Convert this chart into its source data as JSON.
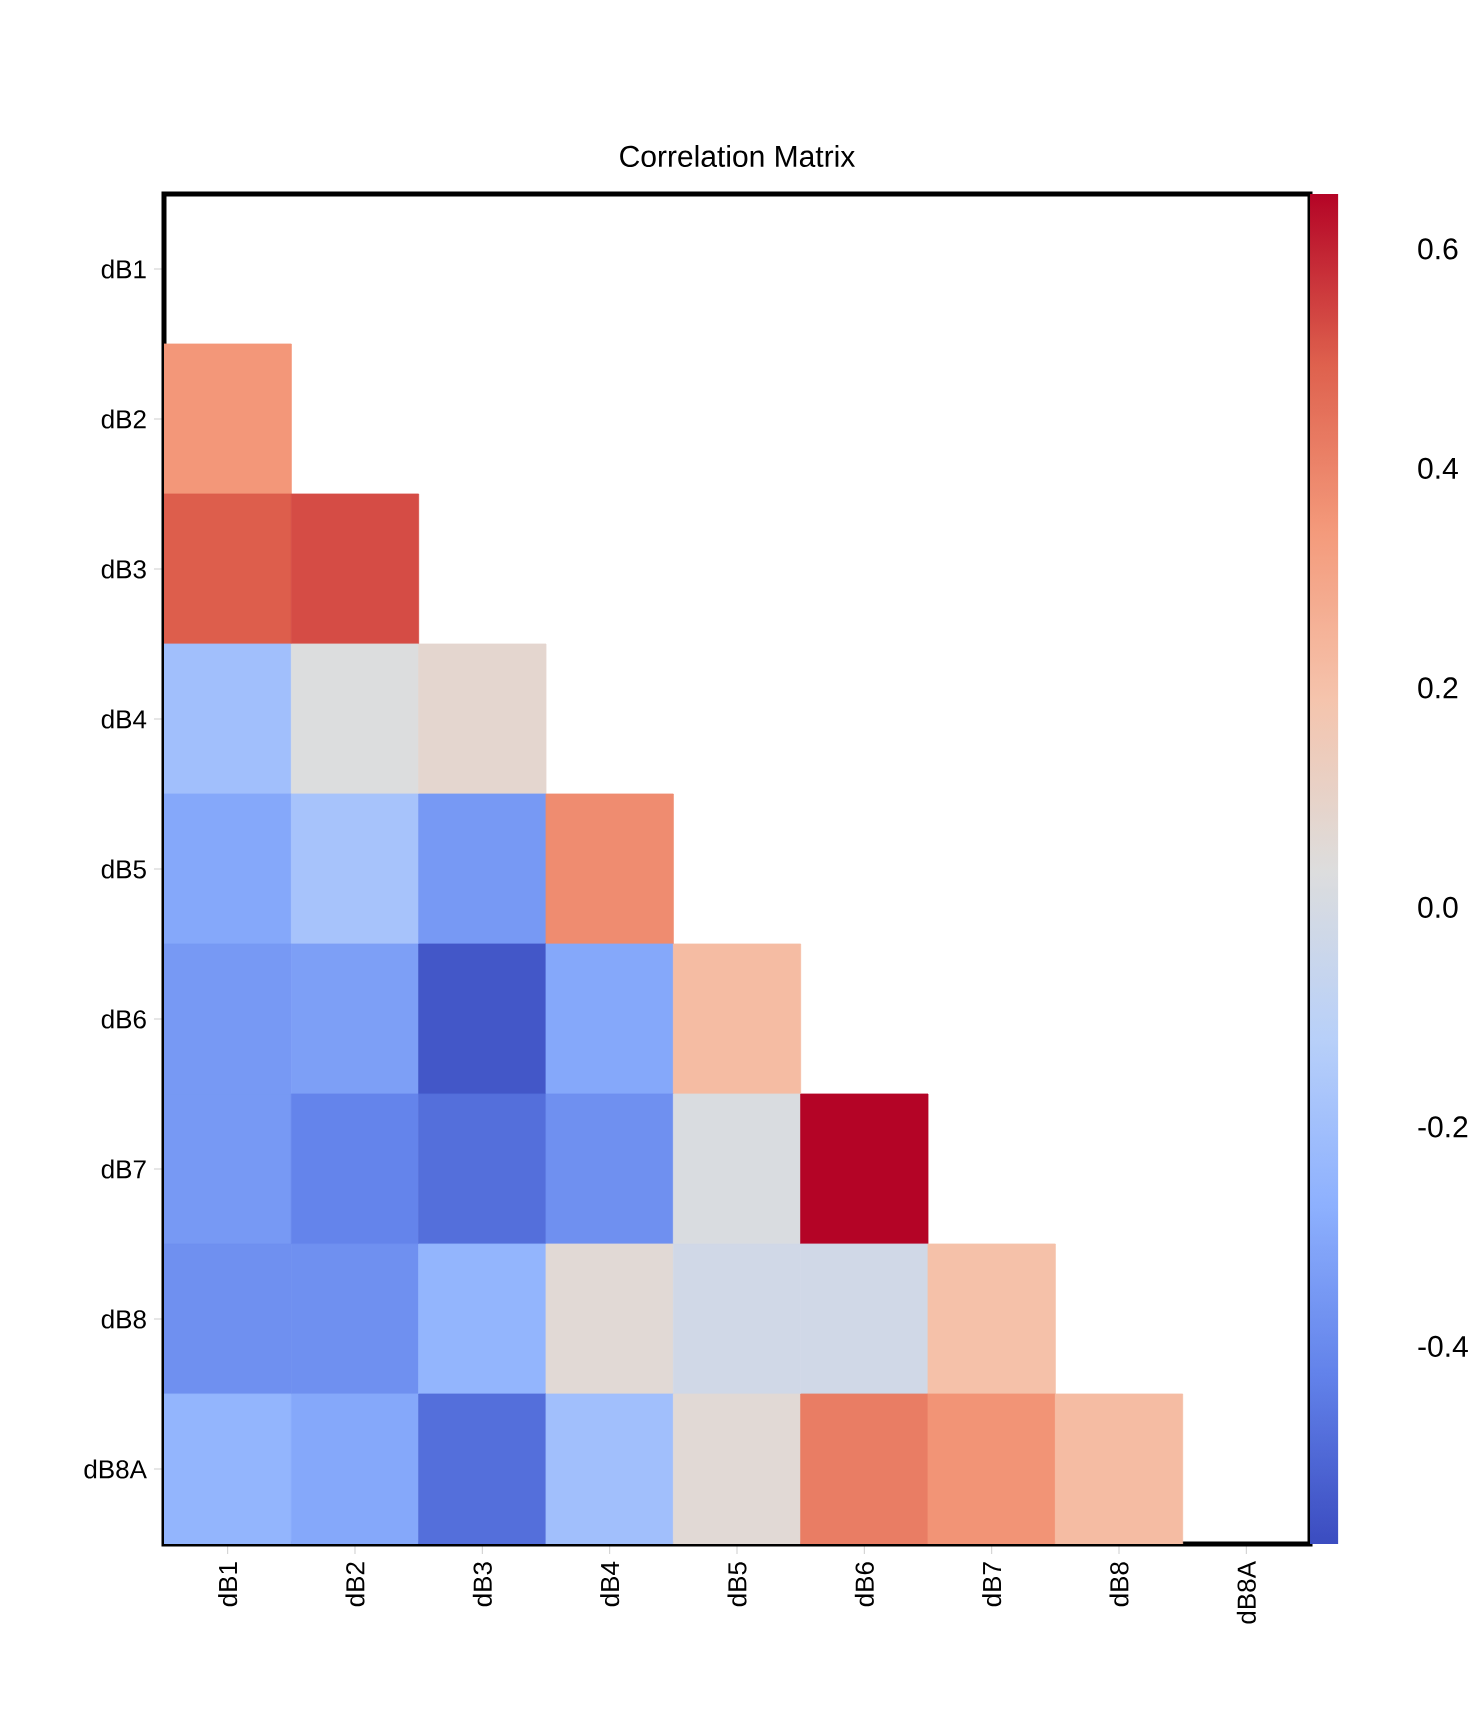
{
  "chart_data": {
    "type": "heatmap",
    "title": "Correlation Matrix",
    "categories": [
      "dB1",
      "dB2",
      "dB3",
      "dB4",
      "dB5",
      "dB6",
      "dB7",
      "dB8",
      "dB8A"
    ],
    "y_categories": [
      "dB1",
      "dB2",
      "dB3",
      "dB4",
      "dB5",
      "dB6",
      "dB7",
      "dB8",
      "dB8A"
    ],
    "cells": [
      [
        null,
        null,
        null,
        null,
        null,
        null,
        null,
        null,
        null
      ],
      [
        0.35,
        null,
        null,
        null,
        null,
        null,
        null,
        null,
        null
      ],
      [
        0.5,
        0.53,
        null,
        null,
        null,
        null,
        null,
        null,
        null
      ],
      [
        -0.2,
        0.03,
        0.08,
        null,
        null,
        null,
        null,
        null,
        null
      ],
      [
        -0.3,
        -0.18,
        -0.35,
        0.38,
        null,
        null,
        null,
        null,
        null
      ],
      [
        -0.35,
        -0.33,
        -0.55,
        -0.3,
        0.22,
        null,
        null,
        null,
        null
      ],
      [
        -0.35,
        -0.42,
        -0.48,
        -0.38,
        0.02,
        0.65,
        null,
        null,
        null
      ],
      [
        -0.38,
        -0.38,
        -0.25,
        0.06,
        -0.02,
        -0.02,
        0.2,
        null,
        null
      ],
      [
        -0.25,
        -0.3,
        -0.48,
        -0.2,
        0.06,
        0.42,
        0.36,
        0.22,
        null
      ]
    ],
    "clim": [
      -0.58,
      0.65
    ],
    "cticks": [
      -0.4,
      -0.2,
      {
        "value": 0,
        "label": "0.0"
      },
      0.2,
      0.4,
      0.6
    ]
  }
}
